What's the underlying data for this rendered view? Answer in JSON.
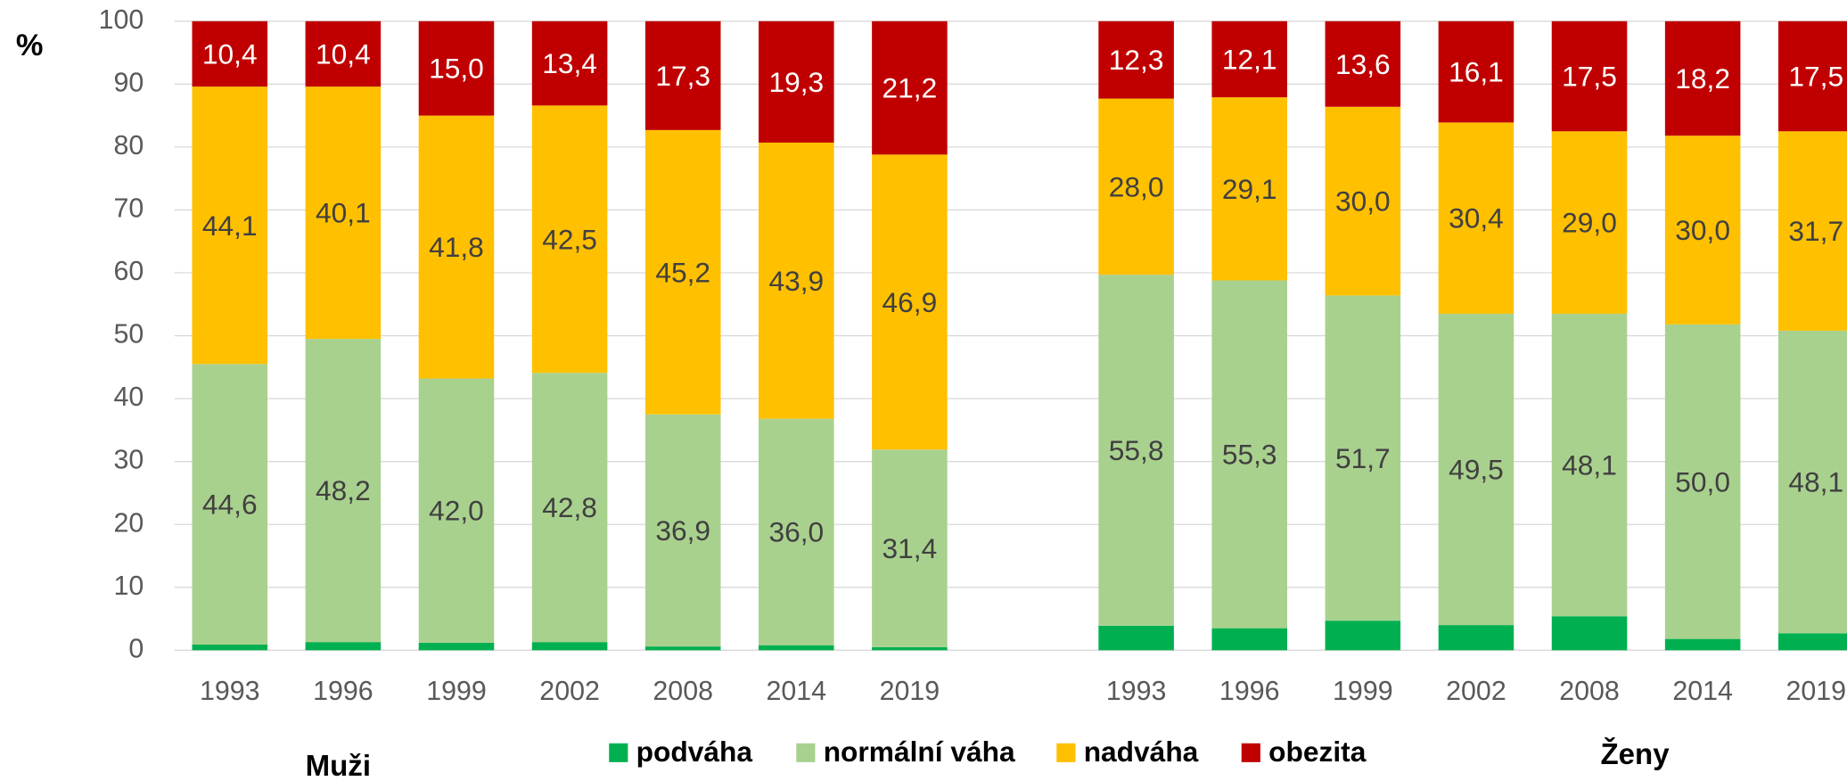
{
  "chart_data": {
    "type": "stacked-bar",
    "y_label": "%",
    "categories": [
      "1993",
      "1996",
      "1999",
      "2002",
      "2008",
      "2014",
      "2019",
      null,
      "1993",
      "1996",
      "1999",
      "2002",
      "2008",
      "2014",
      "2019"
    ],
    "groups": [
      "Muži",
      "Ženy"
    ],
    "series": [
      {
        "name": "podváha",
        "color": "#00b050",
        "label_color": "#404040",
        "values": [
          0.9,
          1.3,
          1.2,
          1.3,
          0.6,
          0.8,
          0.5,
          null,
          3.9,
          3.5,
          4.7,
          4.0,
          5.4,
          1.8,
          2.7
        ]
      },
      {
        "name": "normální váha",
        "color": "#a9d18e",
        "label_color": "#404040",
        "values": [
          44.6,
          48.2,
          42.0,
          42.8,
          36.9,
          36.0,
          31.4,
          null,
          55.8,
          55.3,
          51.7,
          49.5,
          48.1,
          50.0,
          48.1
        ],
        "value_labels": [
          "44,6",
          "48,2",
          "42,0",
          "42,8",
          "36,9",
          "36,0",
          "31,4",
          null,
          "55,8",
          "55,3",
          "51,7",
          "49,5",
          "48,1",
          "50,0",
          "48,1"
        ]
      },
      {
        "name": "nadváha",
        "color": "#ffc000",
        "label_color": "#404040",
        "values": [
          44.1,
          40.1,
          41.8,
          42.5,
          45.2,
          43.9,
          46.9,
          null,
          28.0,
          29.1,
          30.0,
          30.4,
          29.0,
          30.0,
          31.7
        ],
        "value_labels": [
          "44,1",
          "40,1",
          "41,8",
          "42,5",
          "45,2",
          "43,9",
          "46,9",
          null,
          "28,0",
          "29,1",
          "30,0",
          "30,4",
          "29,0",
          "30,0",
          "31,7"
        ]
      },
      {
        "name": "obezita",
        "color": "#c00000",
        "label_color": "#ffffff",
        "values": [
          10.4,
          10.4,
          15.0,
          13.4,
          17.3,
          19.3,
          21.2,
          null,
          12.3,
          12.1,
          13.6,
          16.1,
          17.5,
          18.2,
          17.5
        ],
        "value_labels": [
          "10,4",
          "10,4",
          "15,0",
          "13,4",
          "17,3",
          "19,3",
          "21,2",
          null,
          "12,3",
          "12,1",
          "13,6",
          "16,1",
          "17,5",
          "18,2",
          "17,5"
        ]
      }
    ],
    "ylim": [
      0,
      100
    ],
    "yticks": [
      0,
      10,
      20,
      30,
      40,
      50,
      60,
      70,
      80,
      90,
      100
    ],
    "grid": true
  }
}
